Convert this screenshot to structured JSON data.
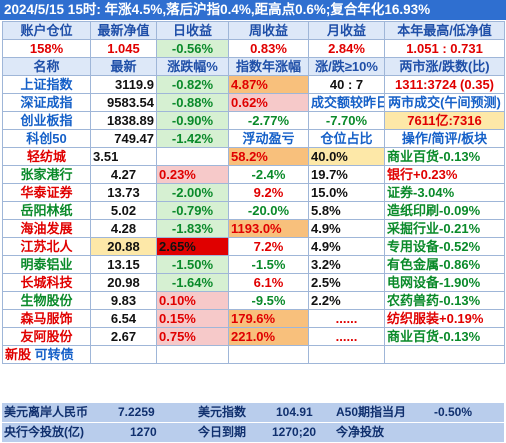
{
  "title": "2024/5/15  15时: 年涨4.5%,落后沪指0.4%,距高点0.6%;复合年化16.93%",
  "account_header": [
    "账户仓位",
    "最新净值",
    "日收益",
    "周收益",
    "月收益",
    "本年最高/低净值"
  ],
  "account_row": [
    "158%",
    "1.045",
    "-0.56%",
    "0.83%",
    "2.84%",
    "1.051 : 0.731"
  ],
  "index_header": [
    "名称",
    "最新",
    "涨跌幅%",
    "指数年涨幅",
    "涨/跌≥10%",
    "两市涨/跌数(比)"
  ],
  "indices": [
    {
      "name": "上证指数",
      "last": "3119.9",
      "chg": "-0.82%",
      "year": "4.87%",
      "extra": "40  :  7",
      "extra2": "1311:3724 (0.35)"
    },
    {
      "name": "深证成指",
      "last": "9583.54",
      "chg": "-0.88%",
      "year": "0.62%",
      "extra": "成交额较昨日",
      "extra2": "两市成交(午间预测)"
    },
    {
      "name": "创业板指",
      "last": "1838.89",
      "chg": "-0.90%",
      "year": "-2.77%",
      "extra": "-7.70%",
      "extra2": "7611亿:7316"
    },
    {
      "name": "科创50",
      "last": "749.47",
      "chg": "-1.42%",
      "year": "浮动盈亏",
      "extra": "仓位占比",
      "extra2": "操作/简评/板块"
    }
  ],
  "stocks": [
    {
      "name": "轻纺城",
      "last": "3.51",
      "chg": "",
      "pnl": "58.2%",
      "pos": "40.0%",
      "note": "商业百货-0.13%"
    },
    {
      "name": "张家港行",
      "last": "4.27",
      "chg": "0.23%",
      "pnl": "-2.4%",
      "pos": "19.7%",
      "note": "银行+0.23%"
    },
    {
      "name": "华泰证券",
      "last": "13.73",
      "chg": "-2.00%",
      "pnl": "9.2%",
      "pos": "15.0%",
      "note": "证券-3.04%"
    },
    {
      "name": "岳阳林纸",
      "last": "5.02",
      "chg": "-0.79%",
      "pnl": "-20.0%",
      "pos": "5.8%",
      "note": "造纸印刷-0.09%"
    },
    {
      "name": "海油发展",
      "last": "4.28",
      "chg": "-1.83%",
      "pnl": "1193.0%",
      "pos": "4.9%",
      "note": "采掘行业-0.21%"
    },
    {
      "name": "江苏北人",
      "last": "20.88",
      "chg": "2.65%",
      "pnl": "7.2%",
      "pos": "4.9%",
      "note": "专用设备-0.52%"
    },
    {
      "name": "明泰铝业",
      "last": "13.15",
      "chg": "-1.50%",
      "pnl": "-1.5%",
      "pos": "3.2%",
      "note": "有色金属-0.86%"
    },
    {
      "name": "长城科技",
      "last": "20.98",
      "chg": "-1.64%",
      "pnl": "6.1%",
      "pos": "2.5%",
      "note": "电网设备-1.90%"
    },
    {
      "name": "生物股份",
      "last": "9.83",
      "chg": "0.10%",
      "pnl": "-9.5%",
      "pos": "2.2%",
      "note": "农药兽药-0.13%"
    },
    {
      "name": "森马服饰",
      "last": "6.54",
      "chg": "0.15%",
      "pnl": "179.6%",
      "pos": "......",
      "note": "纺织服装+0.19%"
    },
    {
      "name": "友阿股份",
      "last": "2.67",
      "chg": "0.75%",
      "pnl": "221.0%",
      "pos": "......",
      "note": "商业百货-0.13%"
    }
  ],
  "newstock_label": "新股",
  "convertible_label": "可转债",
  "footer1": {
    "l1": "美元离岸人民币",
    "v1": "7.2259",
    "l2": "美元指数",
    "v2": "104.91",
    "l3": "A50期指当月",
    "v3": "-0.50%"
  },
  "footer2": {
    "l1": "央行今投放(亿)",
    "v1": "1270",
    "l2": "今日到期",
    "v2": "1270;20",
    "l3": "今净投放"
  }
}
